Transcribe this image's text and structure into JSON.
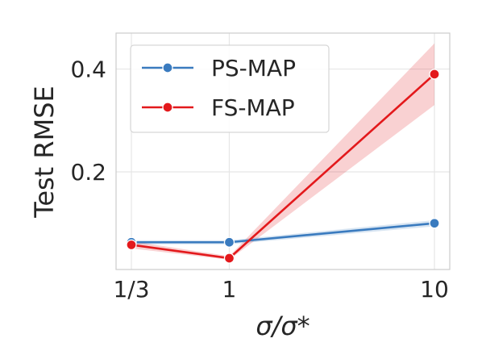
{
  "chart_data": {
    "type": "line",
    "xlabel": "σ/σ*",
    "ylabel": "Test RMSE",
    "x": [
      0.3333,
      1,
      10
    ],
    "x_tick_labels": [
      "1/3",
      "1",
      "10"
    ],
    "x_scale": "log",
    "y_ticks": [
      0.2,
      0.4
    ],
    "y_tick_labels": [
      "0.2",
      "0.4"
    ],
    "ylim": [
      0.01,
      0.47
    ],
    "grid": true,
    "legend_position": "top-left",
    "series": [
      {
        "name": "PS-MAP",
        "color": "#3a7bbf",
        "values": [
          0.063,
          0.063,
          0.1
        ],
        "band_lower": [
          0.059,
          0.059,
          0.094
        ],
        "band_upper": [
          0.067,
          0.067,
          0.106
        ]
      },
      {
        "name": "FS-MAP",
        "color": "#e3191c",
        "values": [
          0.058,
          0.032,
          0.39
        ],
        "band_lower": [
          0.051,
          0.029,
          0.33
        ],
        "band_upper": [
          0.065,
          0.036,
          0.45
        ]
      }
    ]
  }
}
